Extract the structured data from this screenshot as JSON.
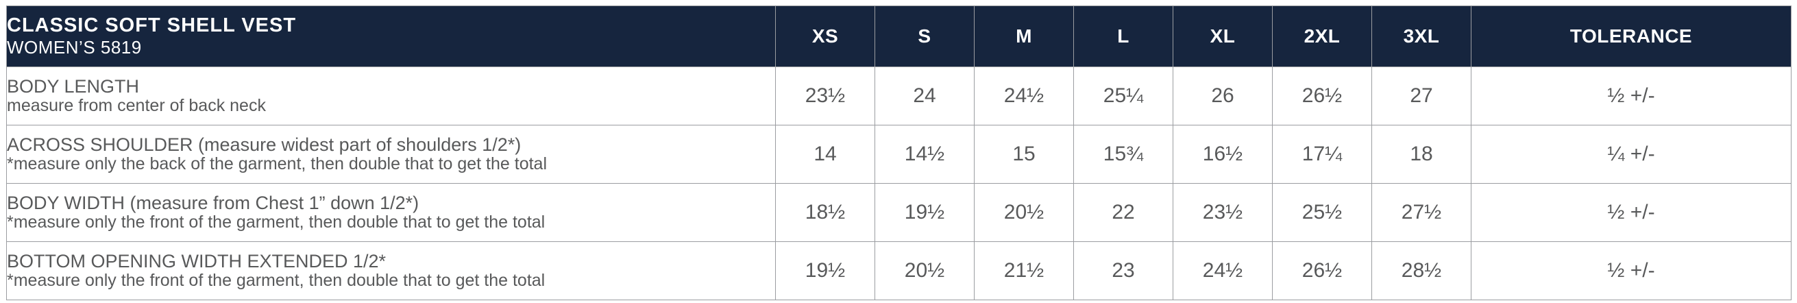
{
  "header": {
    "title": "CLASSIC SOFT SHELL VEST",
    "subtitle": "WOMEN’S 5819",
    "size_columns": [
      "XS",
      "S",
      "M",
      "L",
      "XL",
      "2XL",
      "3XL"
    ],
    "tolerance_label": "TOLERANCE"
  },
  "rows": [
    {
      "label": "BODY LENGTH",
      "note": "measure from center of back neck",
      "values": [
        "23½",
        "24",
        "24½",
        "25¼",
        "26",
        "26½",
        "27"
      ],
      "tolerance": "½ +/-"
    },
    {
      "label": "ACROSS SHOULDER (measure widest part of shoulders 1/2*)",
      "note": "*measure only the back of the garment, then double that to get the total",
      "values": [
        "14",
        "14½",
        "15",
        "15¾",
        "16½",
        "17¼",
        "18"
      ],
      "tolerance": "¼ +/-"
    },
    {
      "label": "BODY WIDTH (measure from Chest 1” down 1/2*)",
      "note": "*measure only the front of the garment, then double that to get the total",
      "values": [
        "18½",
        "19½",
        "20½",
        "22",
        "23½",
        "25½",
        "27½"
      ],
      "tolerance": "½ +/-"
    },
    {
      "label": "BOTTOM OPENING WIDTH EXTENDED 1/2*",
      "note": "*measure only the front of the garment, then double that to get the total",
      "values": [
        "19½",
        "20½",
        "21½",
        "23",
        "24½",
        "26½",
        "28½"
      ],
      "tolerance": "½ +/-"
    }
  ],
  "colors": {
    "header_bg": "#16253e",
    "header_text": "#ffffff",
    "body_text": "#58595a",
    "border": "#9b9da1"
  }
}
